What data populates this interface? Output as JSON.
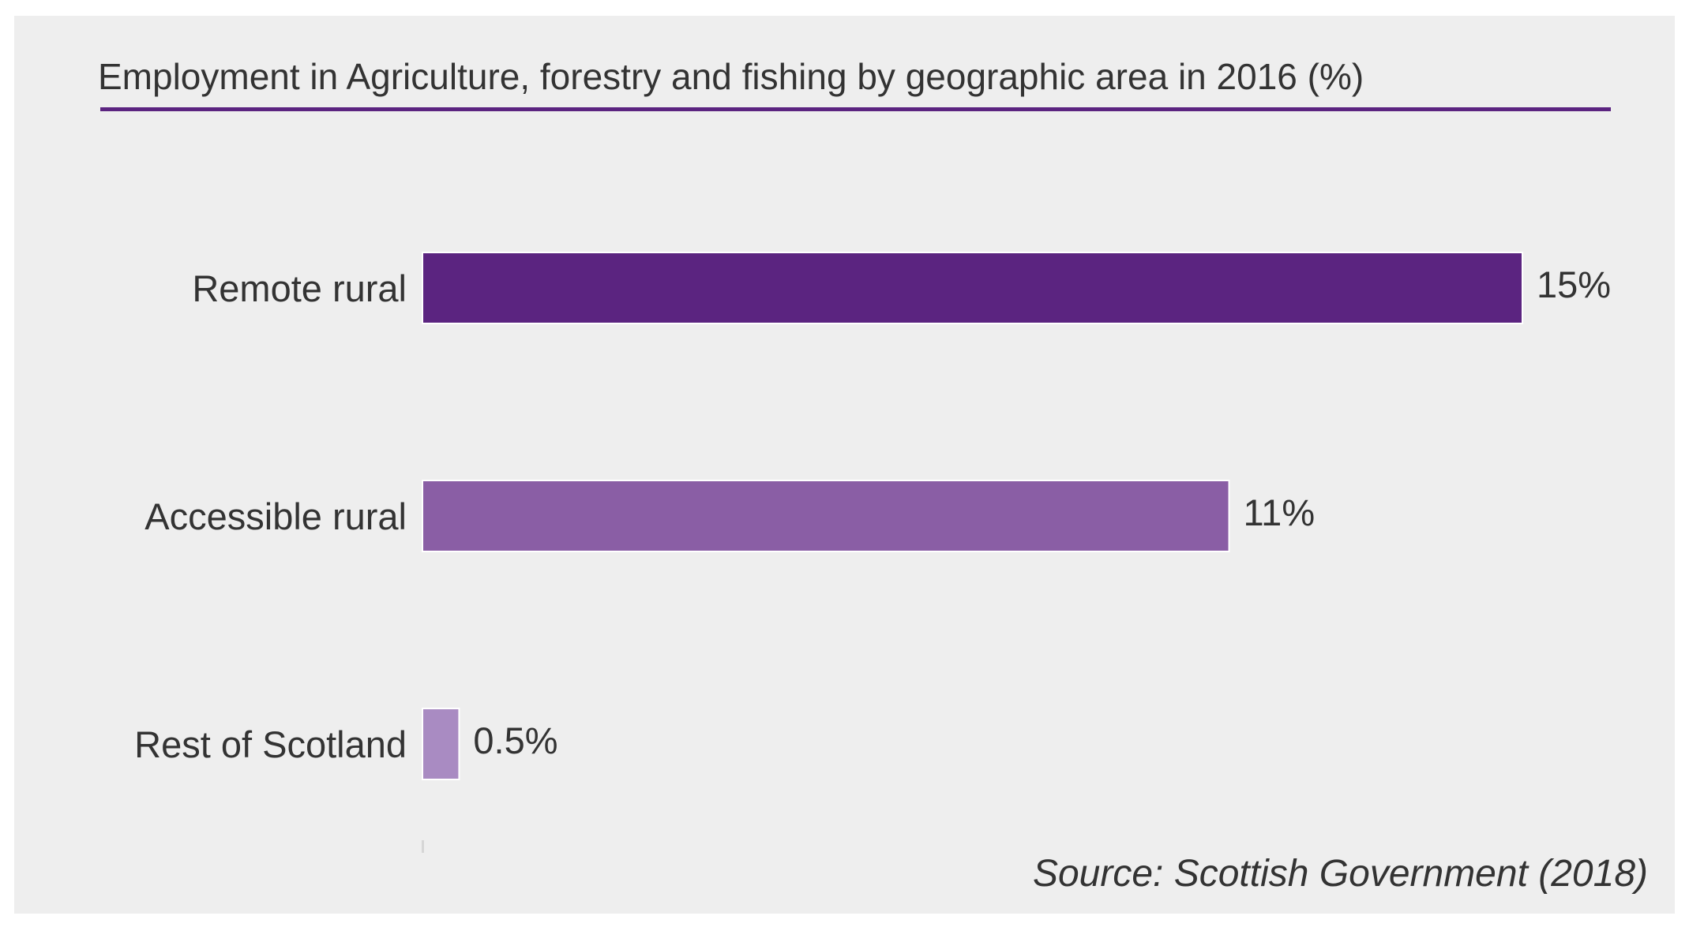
{
  "chart_data": {
    "type": "bar",
    "orientation": "horizontal",
    "title": "Employment in Agriculture, forestry and fishing by geographic area in 2016 (%)",
    "categories": [
      "Remote rural",
      "Accessible rural",
      "Rest of Scotland"
    ],
    "values": [
      15,
      11,
      0.5
    ],
    "value_labels": [
      "15%",
      "11%",
      "0.5%"
    ],
    "colors": [
      "#5b2480",
      "#8a5ea5",
      "#a98bc2"
    ],
    "xlim": [
      0,
      15
    ],
    "grid": false,
    "legend": "none",
    "source": "Source: Scottish Government (2018)"
  }
}
